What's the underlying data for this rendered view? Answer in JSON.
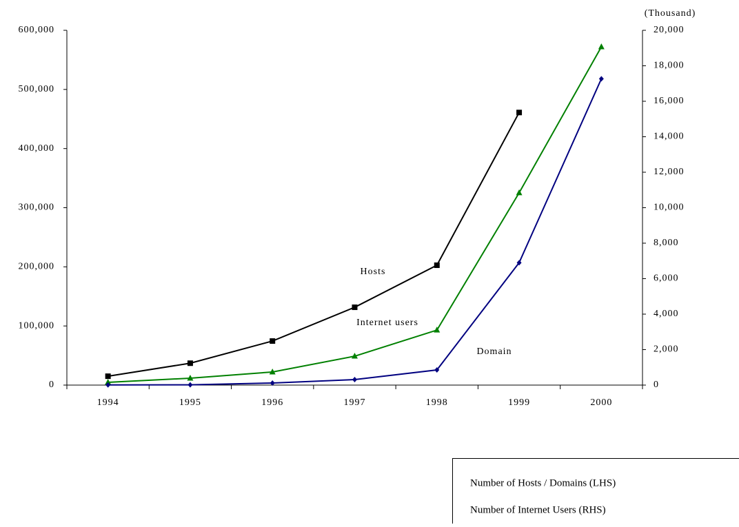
{
  "chart_data": {
    "type": "line",
    "y2_unit_label": "(Thousand)",
    "categories": [
      "1994",
      "1995",
      "1996",
      "1997",
      "1998",
      "1999",
      "2000"
    ],
    "series": [
      {
        "name": "Hosts",
        "color": "#000000",
        "marker": "square",
        "values": [
          15000,
          37000,
          74500,
          131600,
          202700,
          461000,
          null
        ]
      },
      {
        "name": "Internet users",
        "color": "#008000",
        "marker": "triangle",
        "axis": "y2",
        "values": [
          155,
          390,
          740,
          1630,
          3100,
          10840,
          19070
        ]
      },
      {
        "name": "Domain",
        "color": "#000080",
        "marker": "diamond",
        "values": [
          300,
          500,
          3500,
          9300,
          25600,
          207000,
          518000
        ]
      }
    ],
    "ylim": [
      0,
      600000
    ],
    "yticks": [
      0,
      {
        "value": 100000,
        "label": "100,000"
      },
      {
        "value": 200000,
        "label": "200,000"
      },
      {
        "value": 300000,
        "label": "300,000"
      },
      {
        "value": 400000,
        "label": "400,000"
      },
      {
        "value": 500000,
        "label": "500,000"
      },
      {
        "value": 600000,
        "label": "600,000"
      }
    ],
    "y2lim": [
      0,
      20000
    ],
    "y2ticks": [
      0,
      {
        "value": 2000,
        "label": "2,000"
      },
      {
        "value": 4000,
        "label": "4,000"
      },
      {
        "value": 6000,
        "label": "6,000"
      },
      {
        "value": 8000,
        "label": "8,000"
      },
      {
        "value": 10000,
        "label": "10,000"
      },
      {
        "value": 12000,
        "label": "12,000"
      },
      {
        "value": 14000,
        "label": "14,000"
      },
      {
        "value": 16000,
        "label": "16,000"
      },
      {
        "value": 18000,
        "label": "18,000"
      },
      {
        "value": 20000,
        "label": "20,000"
      }
    ],
    "legend": [
      "Number of Hosts / Domains (LHS)",
      "Number of Internet Users (RHS)"
    ]
  }
}
